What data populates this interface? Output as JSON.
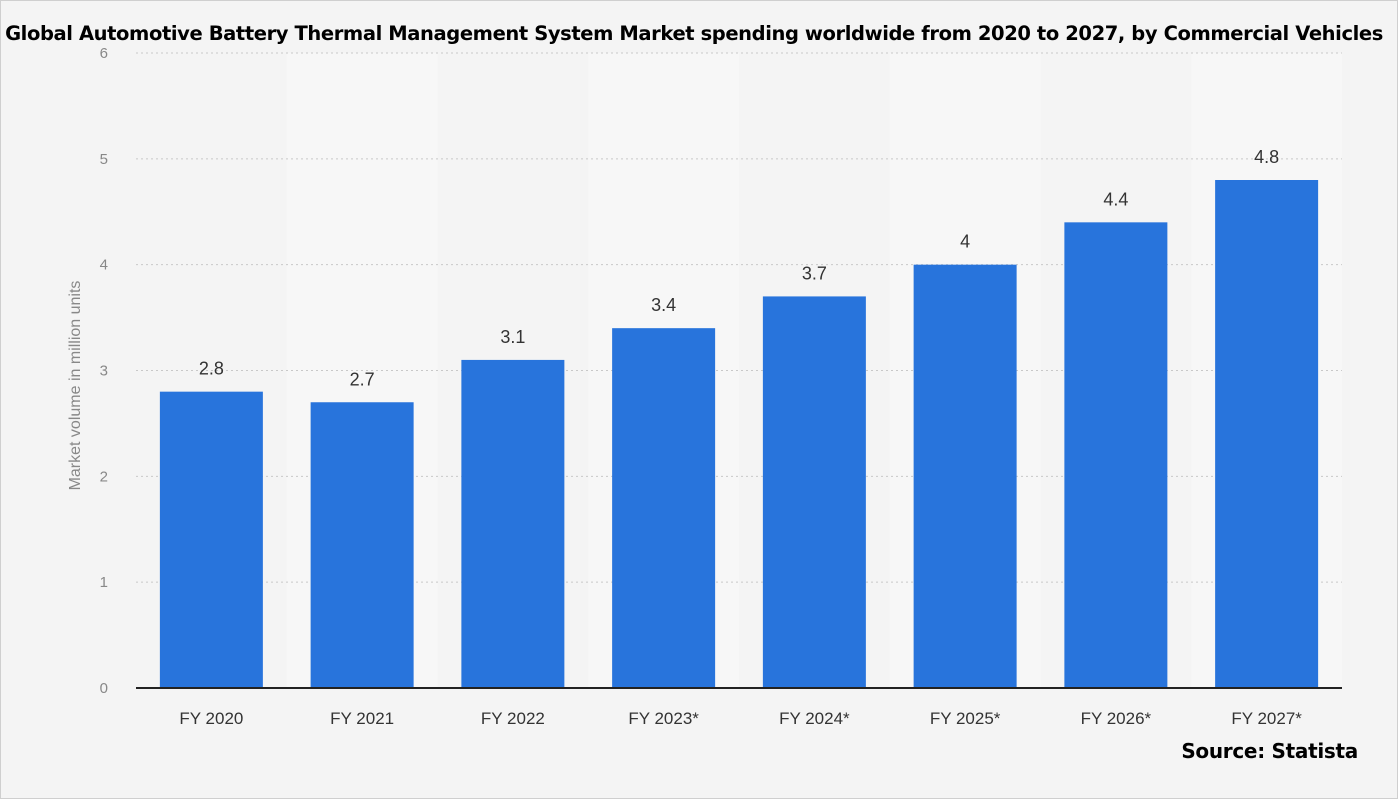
{
  "chart_data": {
    "type": "bar",
    "title": "Global Automotive Battery Thermal Management System Market spending worldwide from 2020 to 2027, by Commercial Vehicles",
    "ylabel": "Market volume in million units",
    "xlabel": "",
    "categories": [
      "FY 2020",
      "FY 2021",
      "FY 2022",
      "FY 2023*",
      "FY 2024*",
      "FY 2025*",
      "FY 2026*",
      "FY 2027*"
    ],
    "values": [
      2.8,
      2.7,
      3.1,
      3.4,
      3.7,
      4,
      4.4,
      4.8
    ],
    "value_labels": [
      "2.8",
      "2.7",
      "3.1",
      "3.4",
      "3.7",
      "4",
      "4.4",
      "4.8"
    ],
    "ylim": [
      0,
      6
    ],
    "yticks": [
      "0",
      "1",
      "2",
      "3",
      "4",
      "5",
      "6"
    ],
    "grid": true,
    "legend": "none",
    "colors": {
      "bar": "#2874dc",
      "band": "#f7f7f7",
      "background": "#f4f4f4",
      "grid": "#c8c8c8",
      "axis": "#222222"
    }
  },
  "source": "Source: Statista"
}
